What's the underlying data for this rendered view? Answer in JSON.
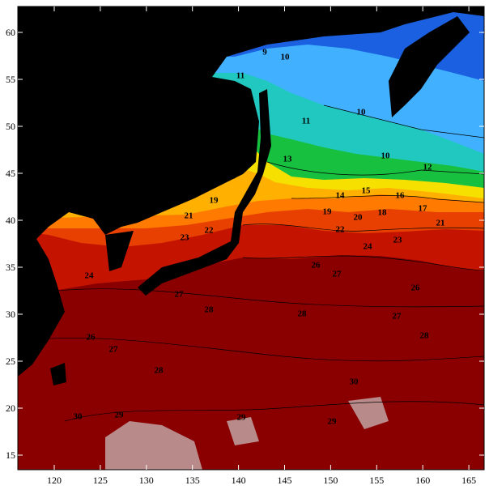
{
  "map": {
    "x_ticks": [
      120,
      125,
      130,
      135,
      140,
      145,
      150,
      155,
      160,
      165
    ],
    "y_ticks": [
      15,
      20,
      25,
      30,
      35,
      40,
      45,
      50,
      55,
      60
    ],
    "contour_labels": [
      "9",
      "10",
      "11",
      "10",
      "11",
      "10",
      "12",
      "13",
      "18",
      "19",
      "14",
      "15",
      "16",
      "17",
      "19",
      "20",
      "18",
      "21",
      "21",
      "22",
      "23",
      "22",
      "24",
      "23",
      "26",
      "27",
      "24",
      "27",
      "28",
      "28",
      "26",
      "27",
      "28",
      "26",
      "27",
      "28",
      "30",
      "29",
      "29",
      "29",
      "30"
    ]
  }
}
